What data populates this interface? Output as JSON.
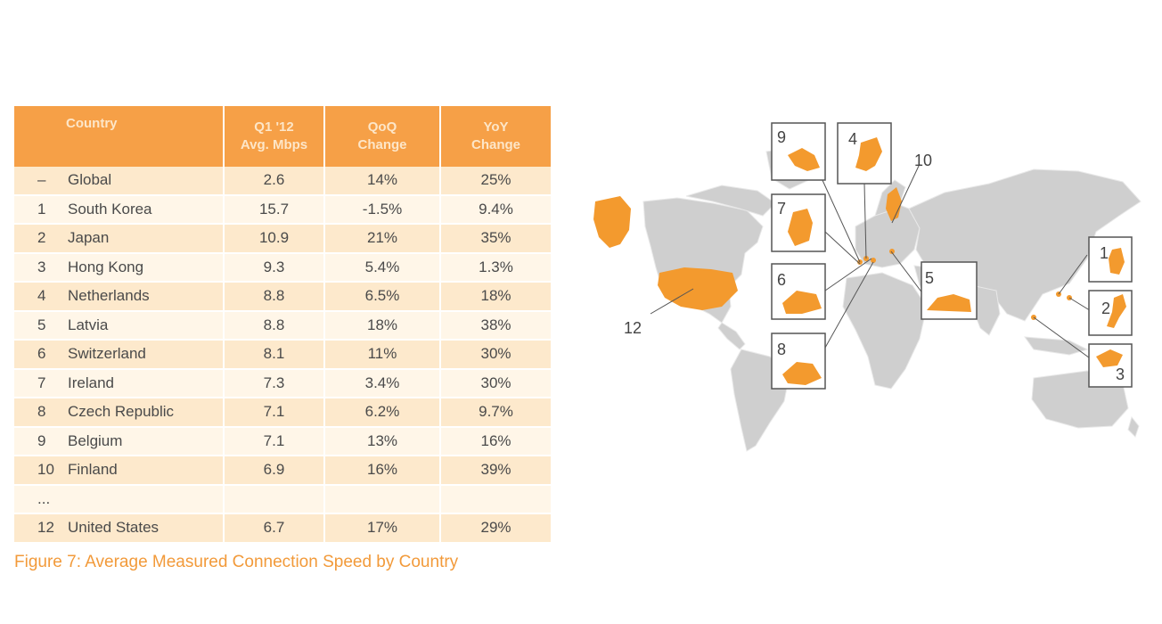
{
  "chart_data": {
    "type": "table",
    "columns": [
      "Country",
      "Q1 '12 Avg. Mbps",
      "QoQ Change",
      "YoY Change"
    ],
    "column_headers": {
      "country": "Country",
      "avg_line1": "Q1 '12",
      "avg_line2": "Avg. Mbps",
      "qoq_line1": "QoQ",
      "qoq_line2": "Change",
      "yoy_line1": "YoY",
      "yoy_line2": "Change"
    },
    "rows": [
      {
        "rank": "–",
        "country": "Global",
        "avg": "2.6",
        "qoq": "14%",
        "yoy": "25%"
      },
      {
        "rank": "1",
        "country": "South Korea",
        "avg": "15.7",
        "qoq": "-1.5%",
        "yoy": "9.4%"
      },
      {
        "rank": "2",
        "country": "Japan",
        "avg": "10.9",
        "qoq": "21%",
        "yoy": "35%"
      },
      {
        "rank": "3",
        "country": "Hong Kong",
        "avg": "9.3",
        "qoq": "5.4%",
        "yoy": "1.3%"
      },
      {
        "rank": "4",
        "country": "Netherlands",
        "avg": "8.8",
        "qoq": "6.5%",
        "yoy": "18%"
      },
      {
        "rank": "5",
        "country": "Latvia",
        "avg": "8.8",
        "qoq": "18%",
        "yoy": "38%"
      },
      {
        "rank": "6",
        "country": "Switzerland",
        "avg": "8.1",
        "qoq": "11%",
        "yoy": "30%"
      },
      {
        "rank": "7",
        "country": "Ireland",
        "avg": "7.3",
        "qoq": "3.4%",
        "yoy": "30%"
      },
      {
        "rank": "8",
        "country": "Czech Republic",
        "avg": "7.1",
        "qoq": "6.2%",
        "yoy": "9.7%"
      },
      {
        "rank": "9",
        "country": "Belgium",
        "avg": "7.1",
        "qoq": "13%",
        "yoy": "16%"
      },
      {
        "rank": "10",
        "country": "Finland",
        "avg": "6.9",
        "qoq": "16%",
        "yoy": "39%"
      },
      {
        "rank": "...",
        "country": "",
        "avg": "",
        "qoq": "",
        "yoy": ""
      },
      {
        "rank": "12",
        "country": "United States",
        "avg": "6.7",
        "qoq": "17%",
        "yoy": "29%"
      }
    ]
  },
  "caption": "Figure 7: Average Measured Connection Speed by Country",
  "map": {
    "callouts": [
      "9",
      "4",
      "10",
      "7",
      "6",
      "5",
      "8",
      "1",
      "2",
      "3",
      "12"
    ]
  },
  "colors": {
    "header": "#f6a047",
    "row_odd": "#fde9cc",
    "row_even": "#fff6e8",
    "land": "#cfcfcf",
    "highlight": "#f39a2e",
    "caption": "#f29a3a"
  }
}
